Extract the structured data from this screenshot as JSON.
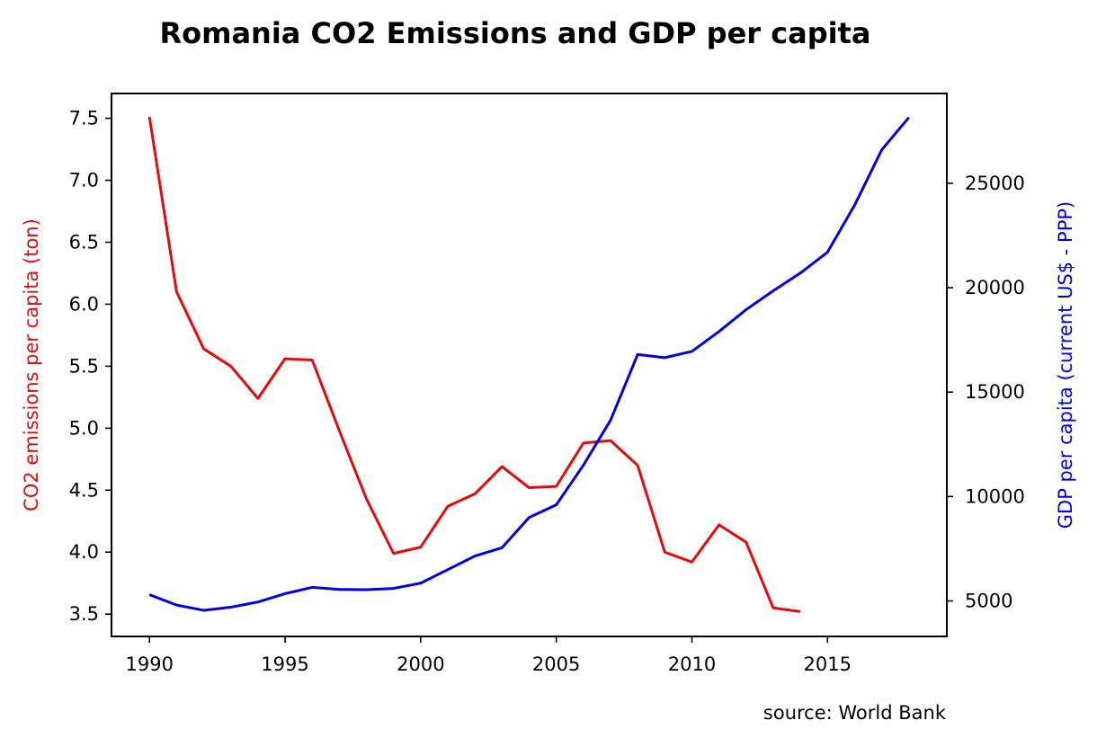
{
  "chart_data": {
    "type": "line",
    "title": "Romania CO2 Emissions and GDP per capita",
    "source_note": "source: World Bank",
    "x": [
      1990,
      1991,
      1992,
      1993,
      1994,
      1995,
      1996,
      1997,
      1998,
      1999,
      2000,
      2001,
      2002,
      2003,
      2004,
      2005,
      2006,
      2007,
      2008,
      2009,
      2010,
      2011,
      2012,
      2013,
      2014,
      2015,
      2016,
      2017,
      2018
    ],
    "x_ticks": [
      "1990",
      "1995",
      "2000",
      "2005",
      "2010",
      "2015"
    ],
    "xlim": [
      1988.6,
      2019.4
    ],
    "grid": false,
    "legend": "none",
    "y_left": {
      "label": "CO2 emissions per capita (ton)",
      "color": "#e8080a",
      "ylim": [
        3.32,
        7.7
      ],
      "ticks": [
        "3.5",
        "4.0",
        "4.5",
        "5.0",
        "5.5",
        "6.0",
        "6.5",
        "7.0",
        "7.5"
      ]
    },
    "y_right": {
      "label": "GDP per capita (current US$ - PPP)",
      "color": "#0000e6",
      "ylim": [
        3300,
        29300
      ],
      "ticks": [
        "5000",
        "10000",
        "15000",
        "20000",
        "25000"
      ]
    },
    "series": [
      {
        "axis": "left",
        "color": "#e8080a",
        "values": [
          7.51,
          6.1,
          5.64,
          5.5,
          5.24,
          5.56,
          5.55,
          4.98,
          4.43,
          3.99,
          4.04,
          4.37,
          4.47,
          4.69,
          4.52,
          4.53,
          4.88,
          4.9,
          4.7,
          4.0,
          3.92,
          4.22,
          4.08,
          3.55,
          3.52,
          null,
          null,
          null,
          null
        ]
      },
      {
        "axis": "right",
        "color": "#0000e6",
        "values": [
          5300,
          4800,
          4550,
          4700,
          4950,
          5350,
          5650,
          5550,
          5540,
          5600,
          5850,
          6500,
          7150,
          7550,
          9000,
          9600,
          11500,
          13650,
          16800,
          16650,
          16950,
          17900,
          18950,
          19850,
          20700,
          21700,
          23950,
          26600,
          28150
        ]
      }
    ]
  }
}
